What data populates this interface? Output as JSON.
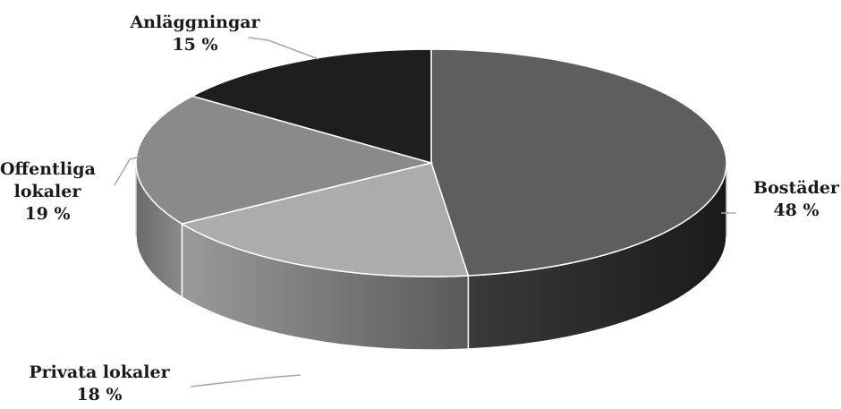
{
  "chart_data": {
    "type": "pie",
    "title": "",
    "slices": [
      {
        "name": "Bostäder",
        "value": 48,
        "display": "48 %",
        "color": "#5e5e5e",
        "side_color": "#262626"
      },
      {
        "name": "Privata lokaler",
        "value": 18,
        "display": "18 %",
        "color": "#acacac",
        "side_color": "#7d7d7d"
      },
      {
        "name": "Offentliga lokaler",
        "value": 19,
        "display": "19 %",
        "color": "#8a8a8a",
        "side_color": "#5a5a5a"
      },
      {
        "name": "Anläggningar",
        "value": 15,
        "display": "15 %",
        "color": "#1e1e1e",
        "side_color": "#0f0f0f"
      }
    ],
    "labels": [
      {
        "lines": [
          "Bostäder"
        ],
        "value": "48 %"
      },
      {
        "lines": [
          "Privata lokaler"
        ],
        "value": "18 %"
      },
      {
        "lines": [
          "Offentliga",
          "lokaler"
        ],
        "value": "19 %"
      },
      {
        "lines": [
          "Anläggningar"
        ],
        "value": "15 %"
      }
    ],
    "style": "3d-tilted",
    "leader_lines": true
  }
}
